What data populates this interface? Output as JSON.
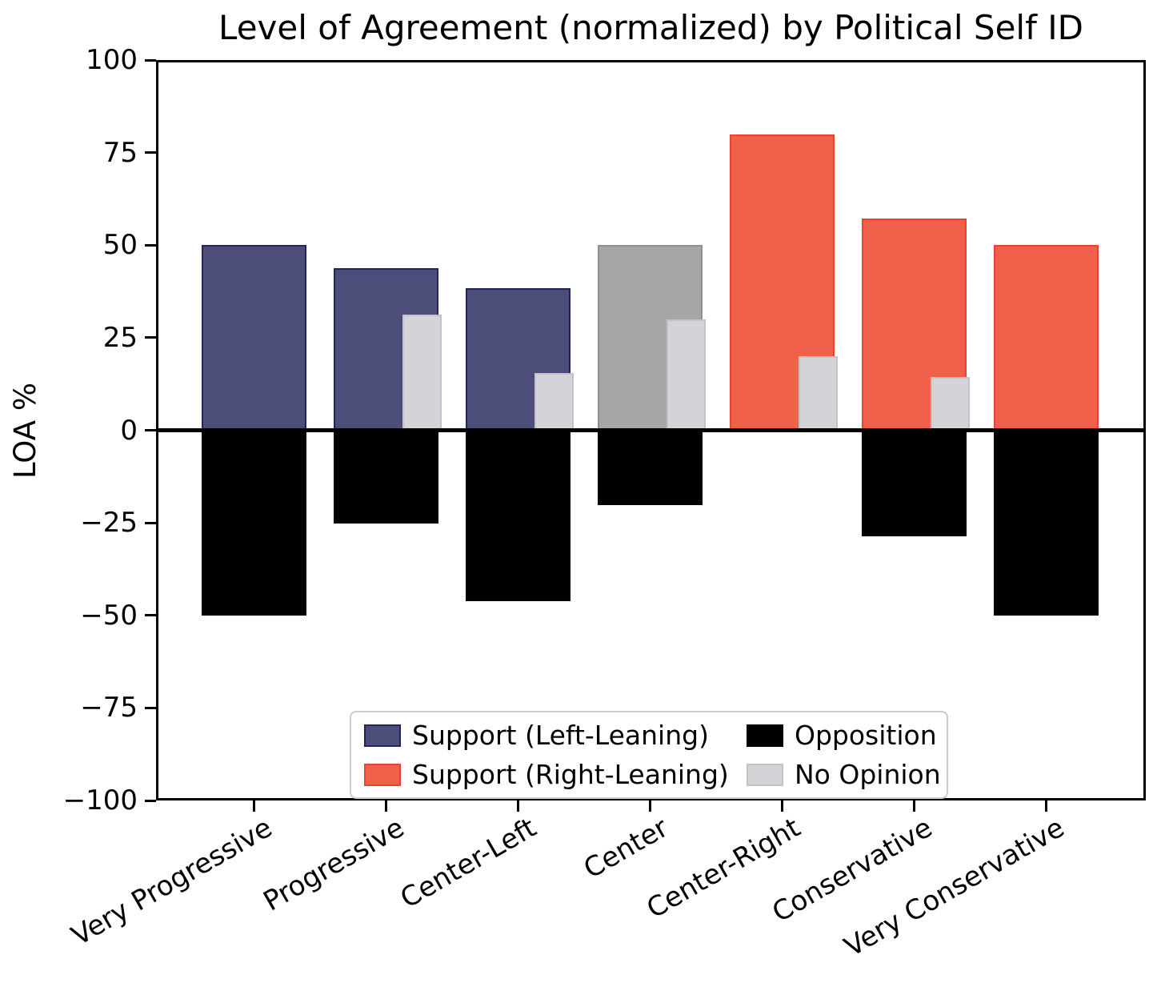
{
  "title": "Level of Agreement (normalized) by Political Self ID",
  "y_axis": {
    "label": "LOA %",
    "tick_labels": [
      "100",
      "75",
      "50",
      "25",
      "0",
      "−25",
      "−50",
      "−75",
      "−100"
    ],
    "tick_values": [
      100,
      75,
      50,
      25,
      0,
      -25,
      -50,
      -75,
      -100
    ]
  },
  "colors": {
    "support_left": "#4C4E79",
    "support_right": "#F1604B",
    "support_neutral": "#A6A6A6",
    "opposition": "#000000",
    "no_opinion": "#D3D3D8",
    "edges": {
      "support_left": "#23255A",
      "support_right": "#E8432C",
      "support_neutral": "#8F8F8F",
      "opposition": "#000000",
      "no_opinion": "#C2C2CA"
    }
  },
  "legend": {
    "items": [
      {
        "label": "Support (Left-Leaning)",
        "color_key": "support_left",
        "col": 0,
        "row": 0
      },
      {
        "label": "Support (Right-Leaning)",
        "color_key": "support_right",
        "col": 0,
        "row": 1
      },
      {
        "label": "Opposition",
        "color_key": "opposition",
        "col": 1,
        "row": 0
      },
      {
        "label": "No Opinion",
        "color_key": "no_opinion",
        "col": 1,
        "row": 1
      }
    ]
  },
  "chart_data": {
    "type": "bar",
    "title": "Level of Agreement (normalized) by Political Self ID",
    "xlabel": "",
    "ylabel": "LOA %",
    "ylim": [
      -100,
      100
    ],
    "yticks": [
      100,
      75,
      50,
      25,
      0,
      -25,
      -50,
      -75,
      -100
    ],
    "grid": false,
    "legend_position": "lower center inside axes, 2 columns",
    "categories": [
      "Very Progressive",
      "Progressive",
      "Center-Left",
      "Center",
      "Center-Right",
      "Conservative",
      "Very Conservative"
    ],
    "series": [
      {
        "name": "Support",
        "values": [
          50,
          43.75,
          38.46,
          50,
          80,
          57.14,
          50
        ],
        "color_keys": [
          "support_left",
          "support_left",
          "support_left",
          "support_neutral",
          "support_right",
          "support_right",
          "support_right"
        ]
      },
      {
        "name": "Opposition",
        "values": [
          -50,
          -25,
          -46.15,
          -20,
          0,
          -28.57,
          -50
        ],
        "color_keys": [
          "opposition",
          "opposition",
          "opposition",
          "opposition",
          "opposition",
          "opposition",
          "opposition"
        ]
      },
      {
        "name": "No Opinion",
        "values": [
          0,
          31.25,
          15.38,
          30,
          20,
          14.29,
          0
        ],
        "color_keys": [
          "no_opinion",
          "no_opinion",
          "no_opinion",
          "no_opinion",
          "no_opinion",
          "no_opinion",
          "no_opinion"
        ]
      }
    ]
  }
}
